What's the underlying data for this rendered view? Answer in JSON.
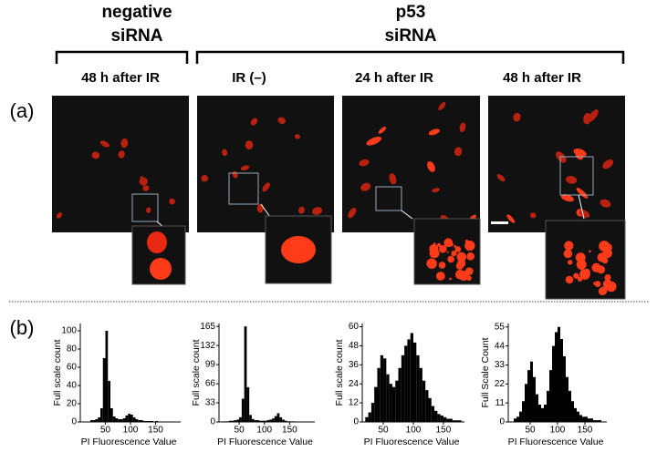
{
  "header": {
    "groups": [
      {
        "lines": [
          "negative",
          "siRNA"
        ]
      },
      {
        "lines": [
          "p53",
          "siRNA"
        ]
      }
    ]
  },
  "panel_a": {
    "label": "(a)",
    "conditions": [
      "48 h after IR",
      "IR (–)",
      "24 h after IR",
      "48 h after IR"
    ]
  },
  "panel_b": {
    "label": "(b)",
    "histograms": [
      {
        "type": "histogram",
        "ylabel": "Full scale count",
        "xlabel": "PI Fluorescence Value",
        "color": "#000000",
        "bins": [
          20,
          25,
          30,
          35,
          40,
          45,
          50,
          55,
          60,
          65,
          70,
          75,
          80,
          85,
          90,
          95,
          100,
          105,
          110,
          115,
          120,
          125,
          130,
          135,
          140,
          145,
          150,
          155,
          160,
          165,
          170,
          175,
          180
        ],
        "counts": [
          2,
          2,
          3,
          5,
          15,
          70,
          100,
          45,
          15,
          6,
          4,
          3,
          3,
          4,
          7,
          9,
          8,
          5,
          3,
          2,
          2,
          1,
          1,
          1,
          1,
          0,
          1,
          0,
          0,
          0,
          0,
          0
        ],
        "xlim": [
          0,
          200
        ],
        "xticks": [
          50,
          100,
          150
        ],
        "ylim": [
          0,
          108
        ],
        "yticks": [
          0,
          20,
          40,
          60,
          80,
          100
        ]
      },
      {
        "type": "histogram",
        "ylabel": "Full scale count",
        "xlabel": "PI Fluorescence Value",
        "color": "#000000",
        "bins": [
          20,
          25,
          30,
          35,
          40,
          45,
          50,
          55,
          60,
          65,
          70,
          75,
          80,
          85,
          90,
          95,
          100,
          105,
          110,
          115,
          120,
          125,
          130,
          135,
          140,
          145,
          150,
          155,
          160,
          165,
          170,
          175,
          180
        ],
        "counts": [
          1,
          1,
          2,
          2,
          3,
          4,
          8,
          40,
          165,
          60,
          12,
          5,
          3,
          3,
          2,
          2,
          2,
          3,
          4,
          6,
          10,
          15,
          8,
          4,
          2,
          1,
          1,
          1,
          0,
          0,
          0,
          0
        ],
        "xlim": [
          10,
          200
        ],
        "xticks": [
          50,
          100,
          150
        ],
        "ylim": [
          0,
          170
        ],
        "yticks": [
          0,
          33,
          66,
          99,
          132,
          165
        ]
      },
      {
        "type": "histogram",
        "ylabel": "Full scale count",
        "xlabel": "PI Fluorescence Value",
        "color": "#000000",
        "bins": [
          20,
          25,
          30,
          35,
          40,
          45,
          50,
          55,
          60,
          65,
          70,
          75,
          80,
          85,
          90,
          95,
          100,
          105,
          110,
          115,
          120,
          125,
          130,
          135,
          140,
          145,
          150,
          155,
          160,
          165,
          170,
          175,
          180
        ],
        "counts": [
          3,
          6,
          12,
          22,
          34,
          42,
          40,
          30,
          24,
          22,
          26,
          34,
          42,
          48,
          52,
          56,
          50,
          42,
          34,
          26,
          20,
          15,
          10,
          7,
          5,
          4,
          3,
          2,
          2,
          1,
          1,
          1
        ],
        "xlim": [
          15,
          185
        ],
        "xticks": [
          50,
          100,
          150
        ],
        "ylim": [
          0,
          62
        ],
        "yticks": [
          0,
          12,
          24,
          36,
          48,
          60
        ]
      },
      {
        "type": "histogram",
        "ylabel": "Full Scale Count",
        "xlabel": "PI Fluorescence Value",
        "color": "#000000",
        "bins": [
          20,
          25,
          30,
          35,
          40,
          45,
          50,
          55,
          60,
          65,
          70,
          75,
          80,
          85,
          90,
          95,
          100,
          105,
          110,
          115,
          120,
          125,
          130,
          135,
          140,
          145,
          150,
          155,
          160,
          165,
          170,
          175,
          180
        ],
        "counts": [
          2,
          3,
          6,
          12,
          22,
          30,
          35,
          26,
          16,
          10,
          8,
          10,
          18,
          30,
          44,
          52,
          55,
          48,
          38,
          26,
          18,
          12,
          8,
          6,
          4,
          3,
          3,
          2,
          2,
          1,
          1,
          1
        ],
        "xlim": [
          10,
          190
        ],
        "xticks": [
          50,
          100,
          150
        ],
        "ylim": [
          0,
          57
        ],
        "yticks": [
          0,
          11,
          22,
          33,
          44,
          55
        ]
      }
    ]
  }
}
